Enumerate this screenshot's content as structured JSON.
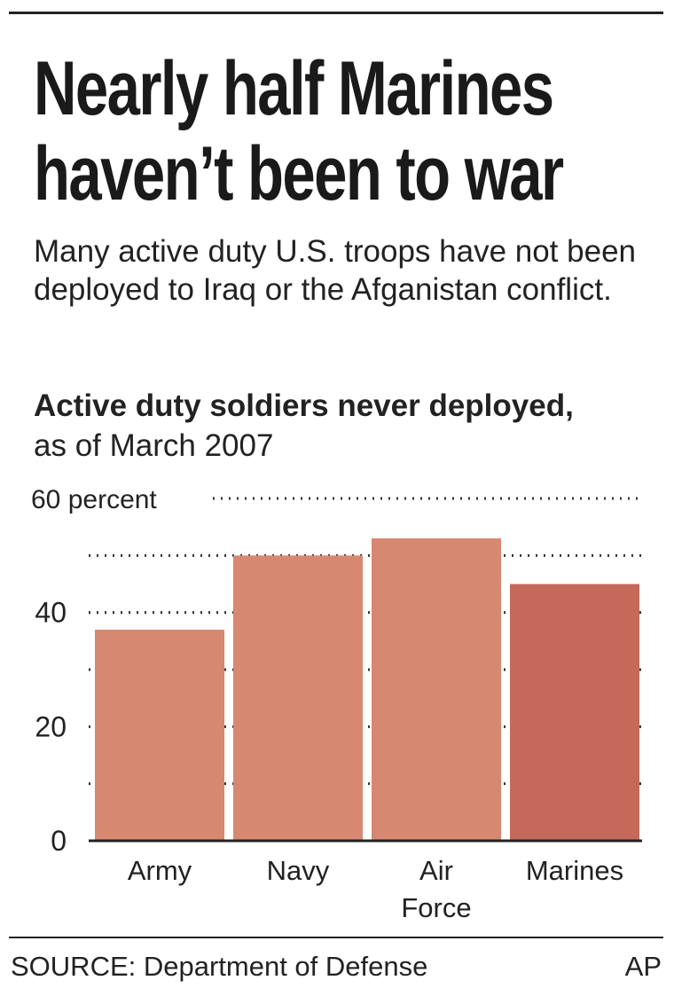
{
  "title_lines": [
    "Nearly half Marines",
    "haven’t been to war"
  ],
  "subtitle": "Many active duty U.S. troops have not been deployed to Iraq or the Afganistan conflict.",
  "chart_label_bold": "Active duty soldiers never deployed,",
  "chart_label_rest": " as of March 2007",
  "source": "SOURCE: Department of Defense",
  "credit": "AP",
  "chart_data": {
    "type": "bar",
    "categories": [
      "Army",
      "Navy",
      "Air Force",
      "Marines"
    ],
    "values": [
      37,
      50,
      53,
      45
    ],
    "colors": [
      "#d78870",
      "#d78870",
      "#d78870",
      "#c5695a"
    ],
    "ylim": [
      0,
      60
    ],
    "yticks": [
      0,
      20,
      40,
      60
    ],
    "ytick_labels": [
      "0",
      "20",
      "40",
      "60 percent"
    ],
    "grid": "dotted, every 10",
    "ylabel": "",
    "xlabel": ""
  }
}
